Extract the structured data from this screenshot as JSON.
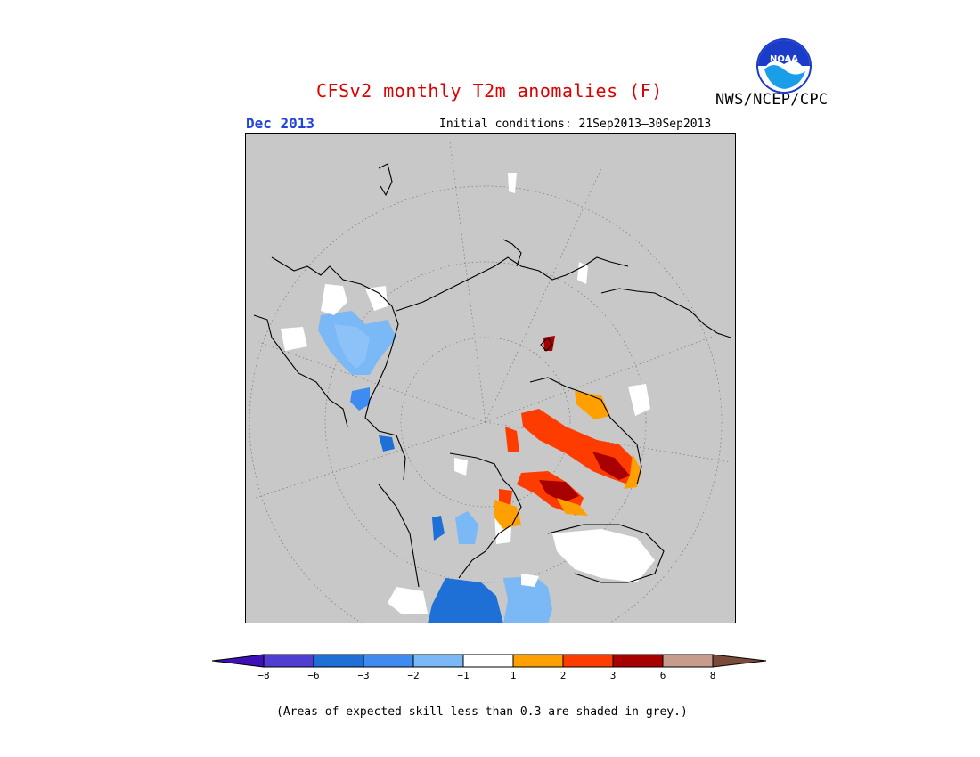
{
  "header": {
    "title": "CFSv2 monthly T2m anomalies (F)",
    "agency": "NWS/NCEP/CPC",
    "month": "Dec 2013",
    "initial_conditions": "Initial conditions: 21Sep2013–30Sep2013",
    "logo_text": "NOAA"
  },
  "colorbar": {
    "ticks": [
      "−8",
      "−6",
      "−3",
      "−2",
      "−1",
      "1",
      "2",
      "3",
      "6",
      "8"
    ],
    "colors": [
      "#3e11b8",
      "#4f3ecf",
      "#1e6fd6",
      "#3e8cf0",
      "#7ab8f6",
      "#ffffff",
      "#ffa000",
      "#ff3c00",
      "#a80000",
      "#c89c8c",
      "#7a4a3a"
    ]
  },
  "footer": {
    "note": "(Areas of expected skill less than 0.3 are shaded in grey.)"
  },
  "map": {
    "background_color": "#c8c8c8",
    "projection": "north-polar-stereographic"
  }
}
